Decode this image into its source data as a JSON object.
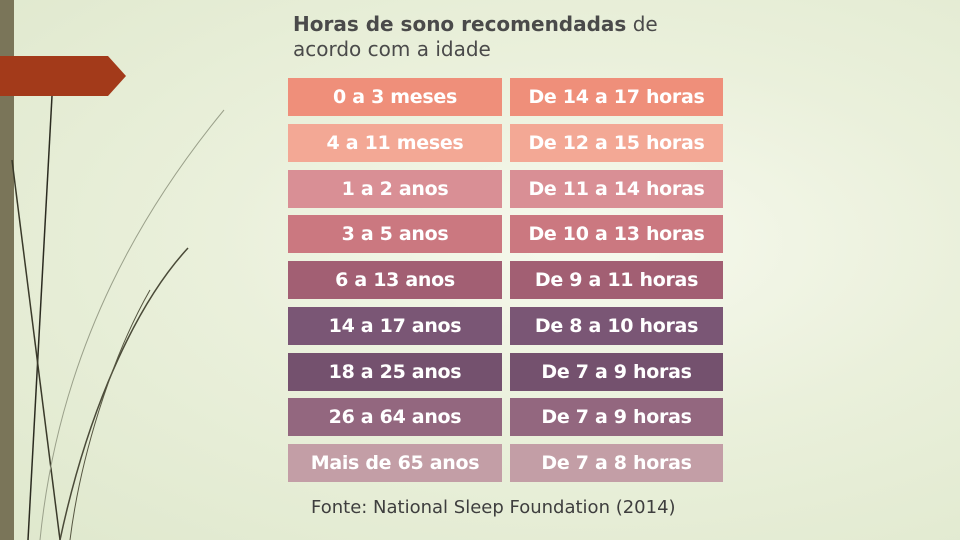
{
  "title": {
    "bold": "Horas de sono recomendadas",
    "rest": " de acordo com a idade"
  },
  "rows": [
    {
      "age": "0 a 3 meses",
      "hours": "De 14 a 17 horas",
      "color": "#ef8f7a"
    },
    {
      "age": "4 a 11 meses",
      "hours": "De 12 a 15 horas",
      "color": "#f3a895"
    },
    {
      "age": "1 a 2 anos",
      "hours": "De 11 a 14 horas",
      "color": "#d98f95"
    },
    {
      "age": "3 a 5 anos",
      "hours": "De 10 a 13 horas",
      "color": "#cb7880"
    },
    {
      "age": "6 a 13 anos",
      "hours": "De 9 a 11 horas",
      "color": "#a25f73"
    },
    {
      "age": "14 a 17 anos",
      "hours": "De 8 a 10 horas",
      "color": "#7a5675"
    },
    {
      "age": "18 a 25 anos",
      "hours": "De 7 a 9 horas",
      "color": "#74516e"
    },
    {
      "age": "26 a 64 anos",
      "hours": "De 7 a 9 horas",
      "color": "#93677f"
    },
    {
      "age": "Mais de 65 anos",
      "hours": "De 7 a 8 horas",
      "color": "#c39ea6"
    }
  ],
  "source": "Fonte: National Sleep Foundation (2014)",
  "colors": {
    "sidebar": "#7a7559",
    "accent_tab": "#a33a1a",
    "background": "#eaf0db"
  }
}
